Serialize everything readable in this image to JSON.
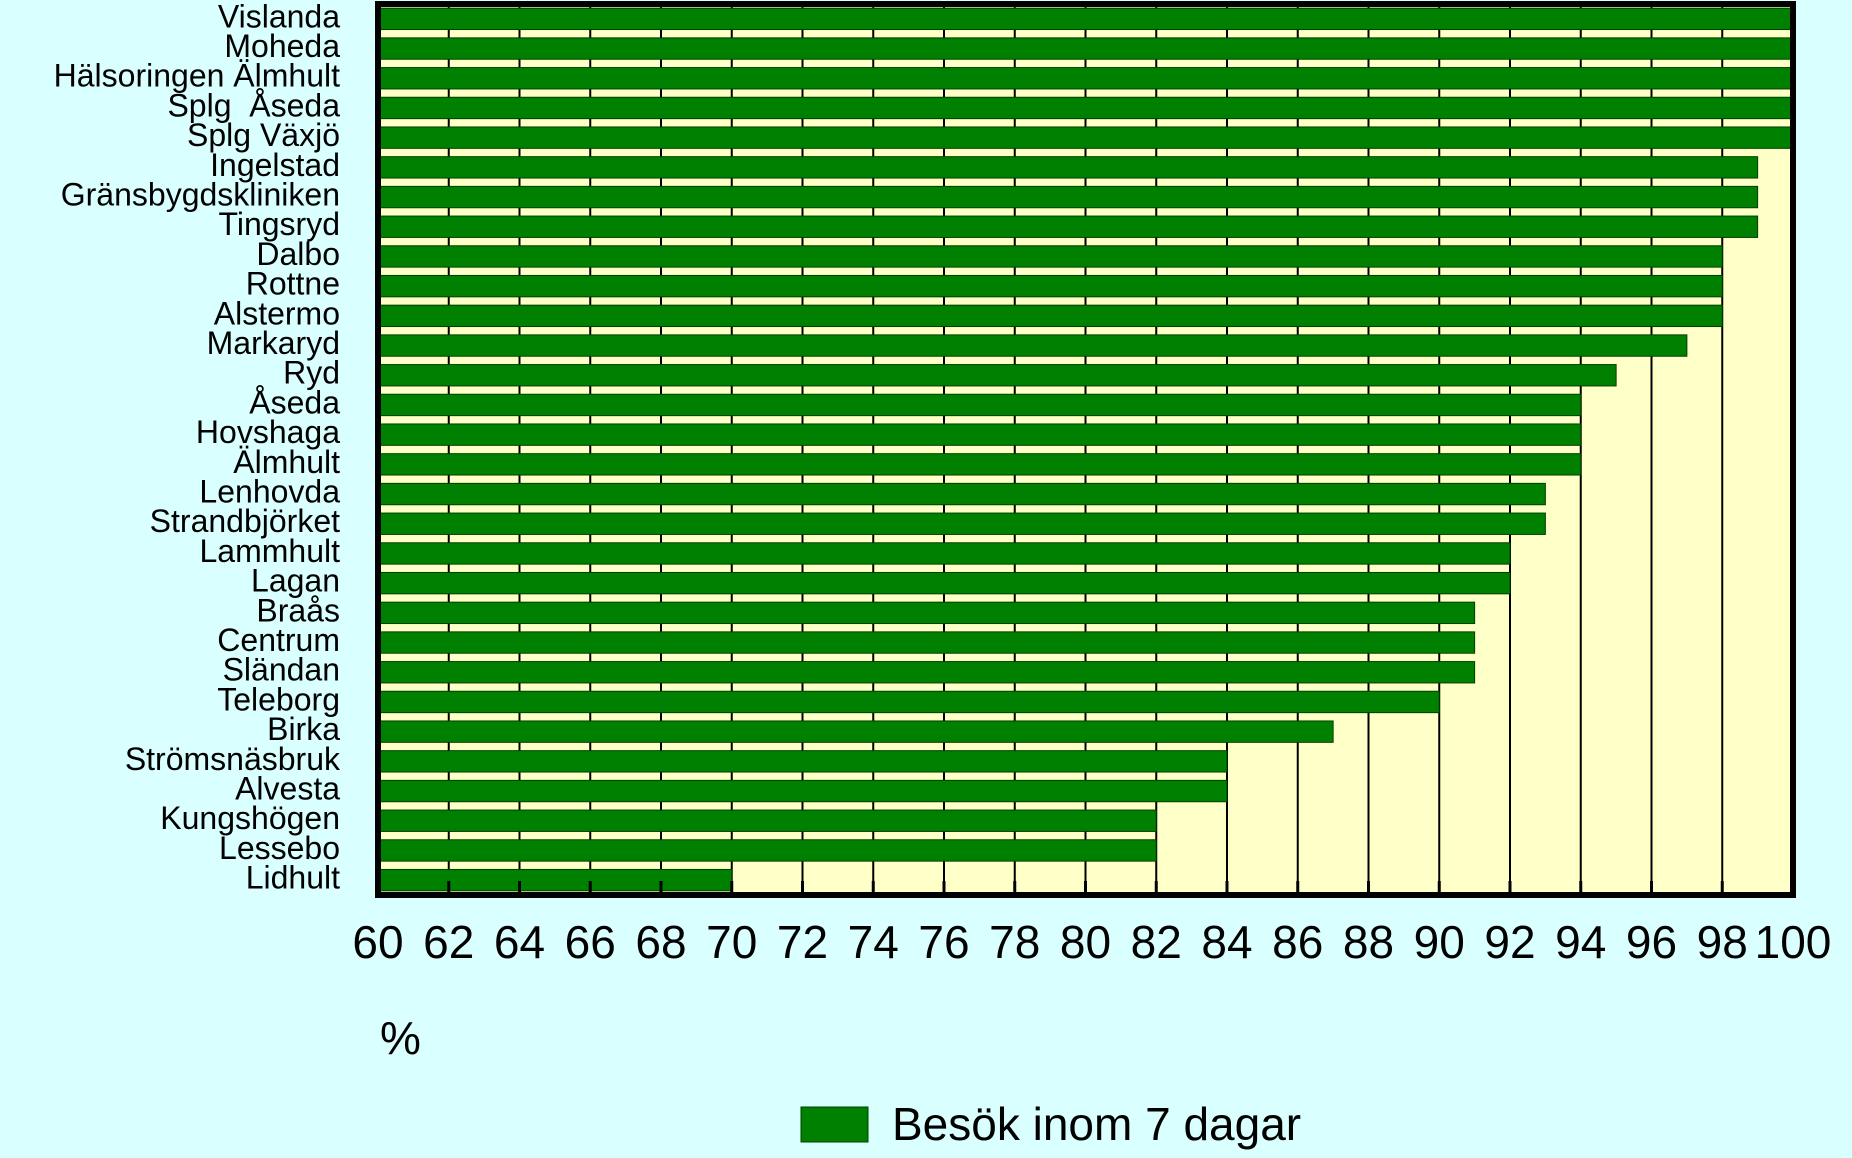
{
  "chart_data": {
    "type": "barh",
    "categories": [
      "Vislanda",
      "Moheda",
      "Hälsoringen Älmhult",
      "Splg  Åseda",
      "Splg Växjö",
      "Ingelstad",
      "Gränsbygdskliniken",
      "Tingsryd",
      "Dalbo",
      "Rottne",
      "Alstermo",
      "Markaryd",
      "Ryd",
      "Åseda",
      "Hovshaga",
      "Älmhult",
      "Lenhovda",
      "Strandbjörket",
      "Lammhult",
      "Lagan",
      "Braås",
      "Centrum",
      "Sländan",
      "Teleborg",
      "Birka",
      "Strömsnäsbruk",
      "Alvesta",
      "Kungshögen",
      "Lessebo",
      "Lidhult"
    ],
    "series": [
      {
        "name": "Besök inom 7 dagar",
        "color": "#008000",
        "values": [
          100,
          100,
          100,
          100,
          100,
          99,
          99,
          99,
          98,
          98,
          98,
          97,
          95,
          94,
          94,
          94,
          93,
          93,
          92,
          92,
          91,
          91,
          91,
          90,
          87,
          84,
          84,
          82,
          82,
          70
        ]
      }
    ],
    "xlabel": "%",
    "xlim": [
      60,
      100
    ],
    "xticks": [
      60,
      62,
      64,
      66,
      68,
      70,
      72,
      74,
      76,
      78,
      80,
      82,
      84,
      86,
      88,
      90,
      92,
      94,
      96,
      98,
      100
    ],
    "grid": true
  }
}
